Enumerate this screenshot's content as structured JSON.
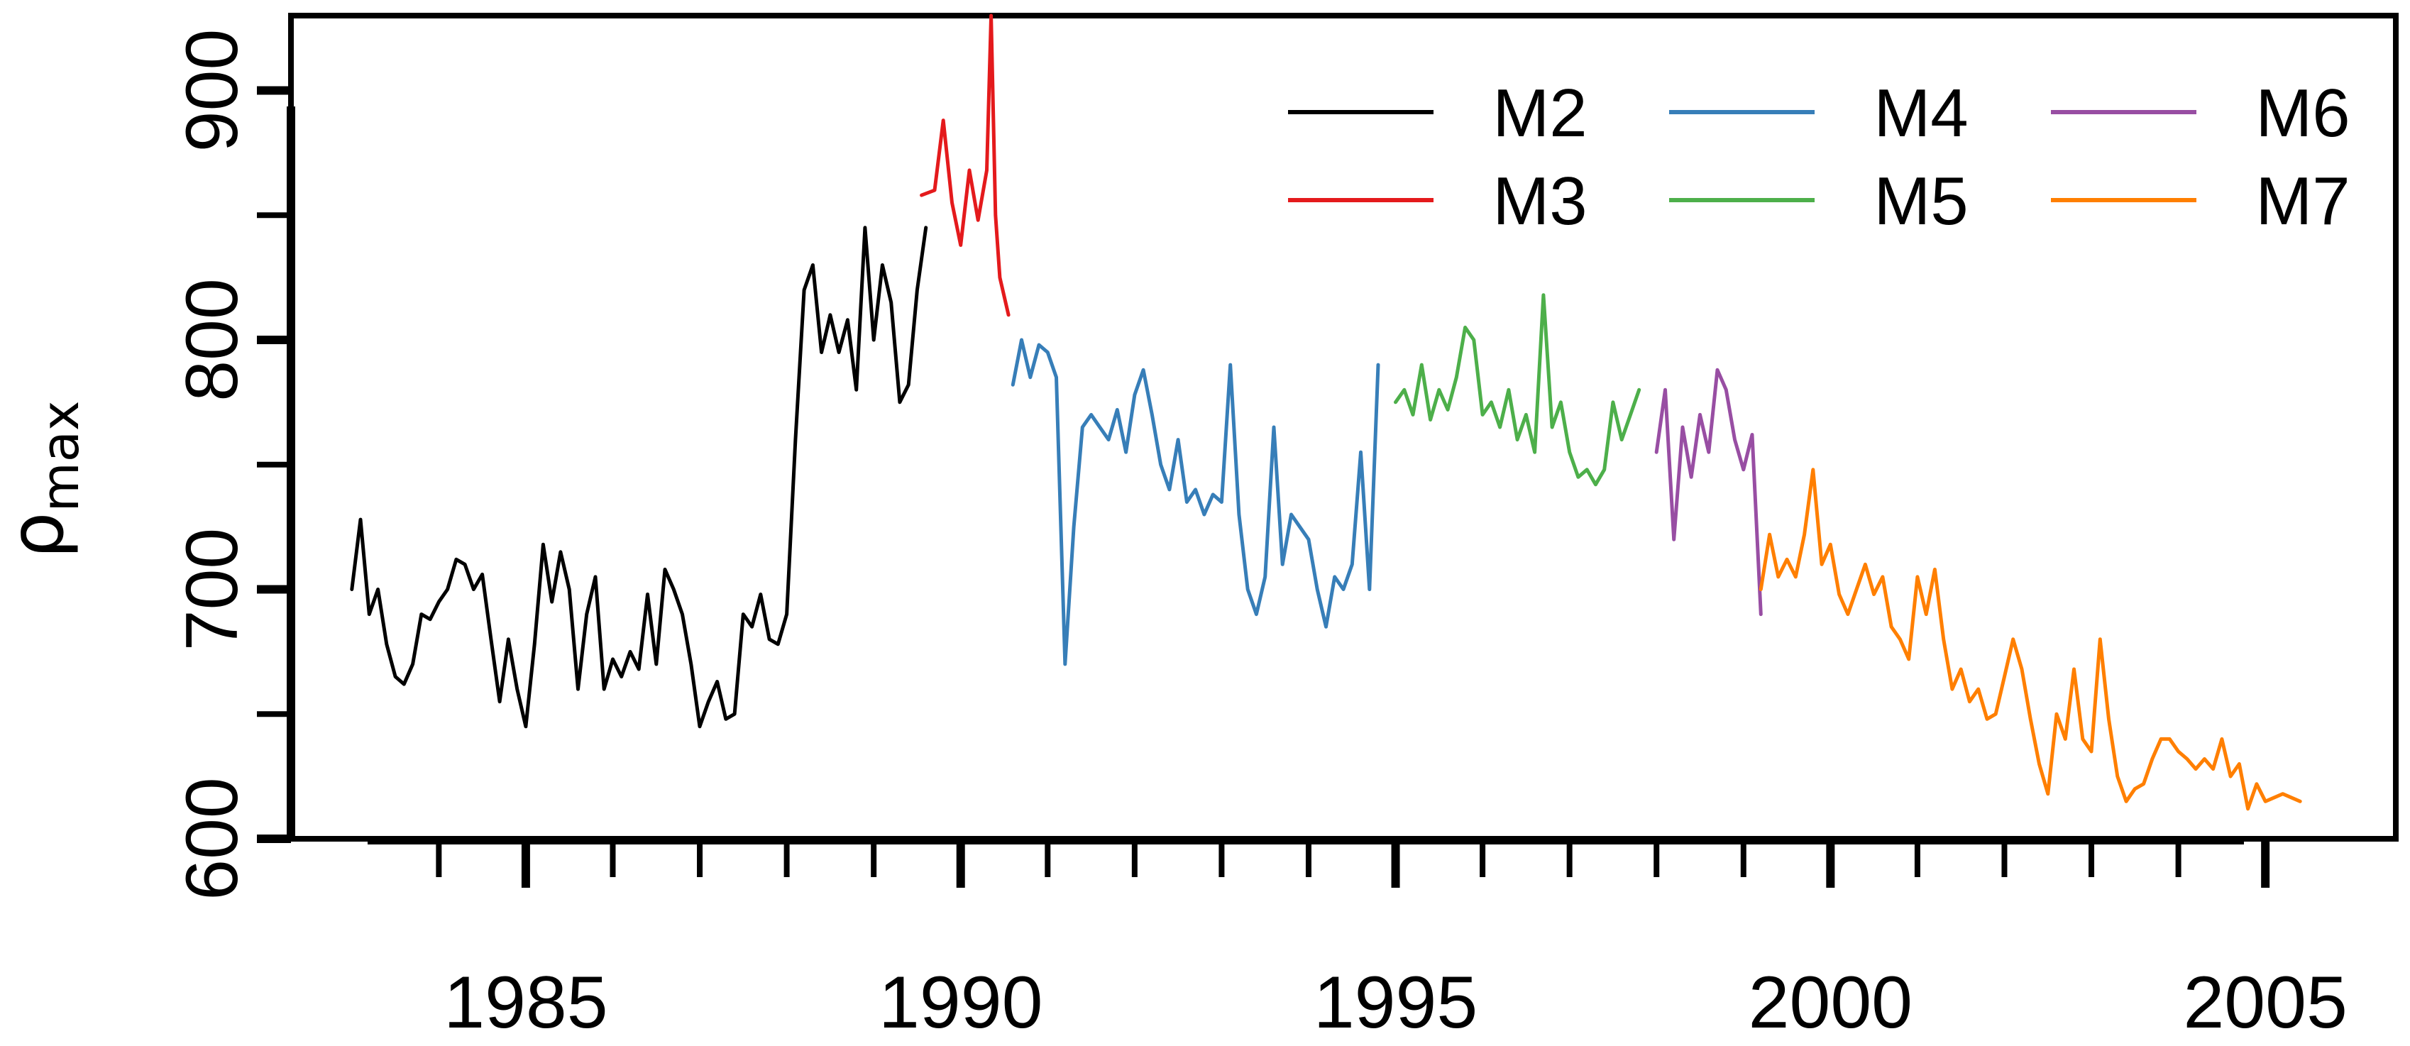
{
  "chart_data": {
    "type": "line",
    "title": "",
    "xlabel": "",
    "ylabel": "ρ",
    "ylabel_subscript": "max",
    "xlim": [
      1982.3,
      2006.5
    ],
    "ylim": [
      600,
      930
    ],
    "x_major_ticks": [
      1985,
      1990,
      1995,
      2000,
      2005
    ],
    "x_minor_ticks": [
      1983,
      1984,
      1986,
      1987,
      1988,
      1989,
      1991,
      1992,
      1993,
      1994,
      1996,
      1997,
      1998,
      1999,
      2001,
      2002,
      2003,
      2004,
      2006
    ],
    "y_major_ticks": [
      600,
      700,
      800,
      900
    ],
    "y_minor_ticks": [
      650,
      750,
      850
    ],
    "grid": false,
    "legend_position": "top-right",
    "series": [
      {
        "name": "M2",
        "color": "#000000",
        "points": [
          [
            1983.0,
            700
          ],
          [
            1983.1,
            728
          ],
          [
            1983.2,
            690
          ],
          [
            1983.3,
            700
          ],
          [
            1983.4,
            678
          ],
          [
            1983.5,
            665
          ],
          [
            1983.6,
            662
          ],
          [
            1983.7,
            670
          ],
          [
            1983.8,
            690
          ],
          [
            1983.9,
            688
          ],
          [
            1984.0,
            695
          ],
          [
            1984.1,
            700
          ],
          [
            1984.2,
            712
          ],
          [
            1984.3,
            710
          ],
          [
            1984.4,
            700
          ],
          [
            1984.5,
            706
          ],
          [
            1984.6,
            680
          ],
          [
            1984.7,
            655
          ],
          [
            1984.8,
            680
          ],
          [
            1984.9,
            660
          ],
          [
            1985.0,
            645
          ],
          [
            1985.1,
            678
          ],
          [
            1985.2,
            718
          ],
          [
            1985.3,
            695
          ],
          [
            1985.4,
            715
          ],
          [
            1985.5,
            700
          ],
          [
            1985.6,
            660
          ],
          [
            1985.7,
            690
          ],
          [
            1985.8,
            705
          ],
          [
            1985.9,
            660
          ],
          [
            1986.0,
            672
          ],
          [
            1986.1,
            665
          ],
          [
            1986.2,
            675
          ],
          [
            1986.3,
            668
          ],
          [
            1986.4,
            698
          ],
          [
            1986.5,
            670
          ],
          [
            1986.6,
            708
          ],
          [
            1986.7,
            700
          ],
          [
            1986.8,
            690
          ],
          [
            1986.9,
            670
          ],
          [
            1987.0,
            645
          ],
          [
            1987.1,
            655
          ],
          [
            1987.2,
            663
          ],
          [
            1987.3,
            648
          ],
          [
            1987.4,
            650
          ],
          [
            1987.5,
            690
          ],
          [
            1987.6,
            685
          ],
          [
            1987.7,
            698
          ],
          [
            1987.8,
            680
          ],
          [
            1987.9,
            678
          ],
          [
            1988.0,
            690
          ],
          [
            1988.1,
            760
          ],
          [
            1988.2,
            820
          ],
          [
            1988.3,
            830
          ],
          [
            1988.4,
            795
          ],
          [
            1988.5,
            810
          ],
          [
            1988.6,
            795
          ],
          [
            1988.7,
            808
          ],
          [
            1988.8,
            780
          ],
          [
            1988.9,
            845
          ],
          [
            1989.0,
            800
          ],
          [
            1989.1,
            830
          ],
          [
            1989.2,
            815
          ],
          [
            1989.3,
            775
          ],
          [
            1989.4,
            782
          ],
          [
            1989.5,
            820
          ],
          [
            1989.6,
            845
          ]
        ]
      },
      {
        "name": "M3",
        "color": "#e41a1c",
        "points": [
          [
            1989.55,
            858
          ],
          [
            1989.7,
            860
          ],
          [
            1989.8,
            888
          ],
          [
            1989.9,
            855
          ],
          [
            1990.0,
            838
          ],
          [
            1990.1,
            868
          ],
          [
            1990.2,
            848
          ],
          [
            1990.3,
            868
          ],
          [
            1990.35,
            930
          ],
          [
            1990.4,
            850
          ],
          [
            1990.45,
            825
          ],
          [
            1990.55,
            810
          ]
        ]
      },
      {
        "name": "M4",
        "color": "#377eb8",
        "points": [
          [
            1990.6,
            782
          ],
          [
            1990.7,
            800
          ],
          [
            1990.8,
            785
          ],
          [
            1990.9,
            798
          ],
          [
            1991.0,
            795
          ],
          [
            1991.1,
            785
          ],
          [
            1991.2,
            670
          ],
          [
            1991.3,
            725
          ],
          [
            1991.4,
            765
          ],
          [
            1991.5,
            770
          ],
          [
            1991.6,
            765
          ],
          [
            1991.7,
            760
          ],
          [
            1991.8,
            772
          ],
          [
            1991.9,
            755
          ],
          [
            1992.0,
            778
          ],
          [
            1992.1,
            788
          ],
          [
            1992.2,
            770
          ],
          [
            1992.3,
            750
          ],
          [
            1992.4,
            740
          ],
          [
            1992.5,
            760
          ],
          [
            1992.6,
            735
          ],
          [
            1992.7,
            740
          ],
          [
            1992.8,
            730
          ],
          [
            1992.9,
            738
          ],
          [
            1993.0,
            735
          ],
          [
            1993.1,
            790
          ],
          [
            1993.2,
            730
          ],
          [
            1993.3,
            700
          ],
          [
            1993.4,
            690
          ],
          [
            1993.5,
            705
          ],
          [
            1993.6,
            765
          ],
          [
            1993.7,
            710
          ],
          [
            1993.8,
            730
          ],
          [
            1993.9,
            725
          ],
          [
            1994.0,
            720
          ],
          [
            1994.1,
            700
          ],
          [
            1994.2,
            685
          ],
          [
            1994.3,
            705
          ],
          [
            1994.4,
            700
          ],
          [
            1994.5,
            710
          ],
          [
            1994.6,
            755
          ],
          [
            1994.7,
            700
          ],
          [
            1994.8,
            790
          ]
        ]
      },
      {
        "name": "M5",
        "color": "#4daf4a",
        "points": [
          [
            1995.0,
            775
          ],
          [
            1995.1,
            780
          ],
          [
            1995.2,
            770
          ],
          [
            1995.3,
            790
          ],
          [
            1995.4,
            768
          ],
          [
            1995.5,
            780
          ],
          [
            1995.6,
            772
          ],
          [
            1995.7,
            785
          ],
          [
            1995.8,
            805
          ],
          [
            1995.9,
            800
          ],
          [
            1996.0,
            770
          ],
          [
            1996.1,
            775
          ],
          [
            1996.2,
            765
          ],
          [
            1996.3,
            780
          ],
          [
            1996.4,
            760
          ],
          [
            1996.5,
            770
          ],
          [
            1996.6,
            755
          ],
          [
            1996.7,
            818
          ],
          [
            1996.8,
            765
          ],
          [
            1996.9,
            775
          ],
          [
            1997.0,
            755
          ],
          [
            1997.1,
            745
          ],
          [
            1997.2,
            748
          ],
          [
            1997.3,
            742
          ],
          [
            1997.4,
            748
          ],
          [
            1997.5,
            775
          ],
          [
            1997.6,
            760
          ],
          [
            1997.7,
            770
          ],
          [
            1997.8,
            780
          ]
        ]
      },
      {
        "name": "M6",
        "color": "#984ea3",
        "points": [
          [
            1998.0,
            755
          ],
          [
            1998.1,
            780
          ],
          [
            1998.2,
            720
          ],
          [
            1998.3,
            765
          ],
          [
            1998.4,
            745
          ],
          [
            1998.5,
            770
          ],
          [
            1998.6,
            755
          ],
          [
            1998.7,
            788
          ],
          [
            1998.8,
            780
          ],
          [
            1998.9,
            760
          ],
          [
            1999.0,
            748
          ],
          [
            1999.1,
            762
          ],
          [
            1999.2,
            690
          ]
        ]
      },
      {
        "name": "M7",
        "color": "#ff7f00",
        "points": [
          [
            1999.2,
            700
          ],
          [
            1999.3,
            722
          ],
          [
            1999.4,
            705
          ],
          [
            1999.5,
            712
          ],
          [
            1999.6,
            705
          ],
          [
            1999.7,
            722
          ],
          [
            1999.8,
            748
          ],
          [
            1999.9,
            710
          ],
          [
            2000.0,
            718
          ],
          [
            2000.1,
            698
          ],
          [
            2000.2,
            690
          ],
          [
            2000.3,
            700
          ],
          [
            2000.4,
            710
          ],
          [
            2000.5,
            698
          ],
          [
            2000.6,
            705
          ],
          [
            2000.7,
            685
          ],
          [
            2000.8,
            680
          ],
          [
            2000.9,
            672
          ],
          [
            2001.0,
            705
          ],
          [
            2001.1,
            690
          ],
          [
            2001.2,
            708
          ],
          [
            2001.3,
            680
          ],
          [
            2001.4,
            660
          ],
          [
            2001.5,
            668
          ],
          [
            2001.6,
            655
          ],
          [
            2001.7,
            660
          ],
          [
            2001.8,
            648
          ],
          [
            2001.9,
            650
          ],
          [
            2002.0,
            665
          ],
          [
            2002.1,
            680
          ],
          [
            2002.2,
            668
          ],
          [
            2002.3,
            648
          ],
          [
            2002.4,
            630
          ],
          [
            2002.5,
            618
          ],
          [
            2002.6,
            650
          ],
          [
            2002.7,
            640
          ],
          [
            2002.8,
            668
          ],
          [
            2002.9,
            640
          ],
          [
            2003.0,
            635
          ],
          [
            2003.1,
            680
          ],
          [
            2003.2,
            648
          ],
          [
            2003.3,
            625
          ],
          [
            2003.4,
            615
          ],
          [
            2003.5,
            620
          ],
          [
            2003.6,
            622
          ],
          [
            2003.7,
            632
          ],
          [
            2003.8,
            640
          ],
          [
            2003.9,
            640
          ],
          [
            2004.0,
            635
          ],
          [
            2004.1,
            632
          ],
          [
            2004.2,
            628
          ],
          [
            2004.3,
            632
          ],
          [
            2004.4,
            628
          ],
          [
            2004.5,
            640
          ],
          [
            2004.6,
            625
          ],
          [
            2004.7,
            630
          ],
          [
            2004.8,
            612
          ],
          [
            2004.9,
            622
          ],
          [
            2005.0,
            615
          ],
          [
            2005.2,
            618
          ],
          [
            2005.4,
            615
          ]
        ]
      }
    ]
  }
}
